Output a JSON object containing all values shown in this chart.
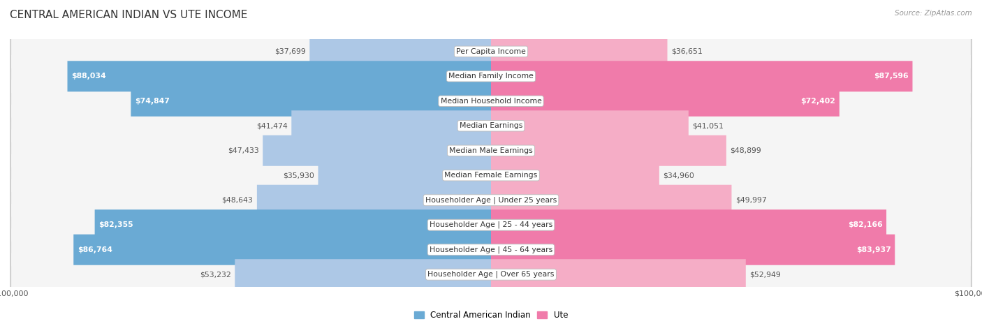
{
  "title": "CENTRAL AMERICAN INDIAN VS UTE INCOME",
  "source": "Source: ZipAtlas.com",
  "categories": [
    "Per Capita Income",
    "Median Family Income",
    "Median Household Income",
    "Median Earnings",
    "Median Male Earnings",
    "Median Female Earnings",
    "Householder Age | Under 25 years",
    "Householder Age | 25 - 44 years",
    "Householder Age | 45 - 64 years",
    "Householder Age | Over 65 years"
  ],
  "left_values": [
    37699,
    88034,
    74847,
    41474,
    47433,
    35930,
    48643,
    82355,
    86764,
    53232
  ],
  "right_values": [
    36651,
    87596,
    72402,
    41051,
    48899,
    34960,
    49997,
    82166,
    83937,
    52949
  ],
  "left_labels": [
    "$37,699",
    "$88,034",
    "$74,847",
    "$41,474",
    "$47,433",
    "$35,930",
    "$48,643",
    "$82,355",
    "$86,764",
    "$53,232"
  ],
  "right_labels": [
    "$36,651",
    "$87,596",
    "$72,402",
    "$41,051",
    "$48,899",
    "$34,960",
    "$49,997",
    "$82,166",
    "$83,937",
    "$52,949"
  ],
  "max_value": 100000,
  "left_color_light": "#adc8e6",
  "left_color_dark": "#6aaad4",
  "right_color_light": "#f5adc6",
  "right_color_dark": "#f07baa",
  "row_bg_color": "#e8e8e8",
  "row_inner_color": "#f5f5f5",
  "legend_left_label": "Central American Indian",
  "legend_right_label": "Ute",
  "legend_left_color": "#6aaad4",
  "legend_right_color": "#f07baa",
  "threshold_dark": 70000,
  "title_fontsize": 11,
  "label_fontsize": 7.8,
  "category_fontsize": 7.8,
  "axis_label_fontsize": 8,
  "background_color": "#ffffff"
}
